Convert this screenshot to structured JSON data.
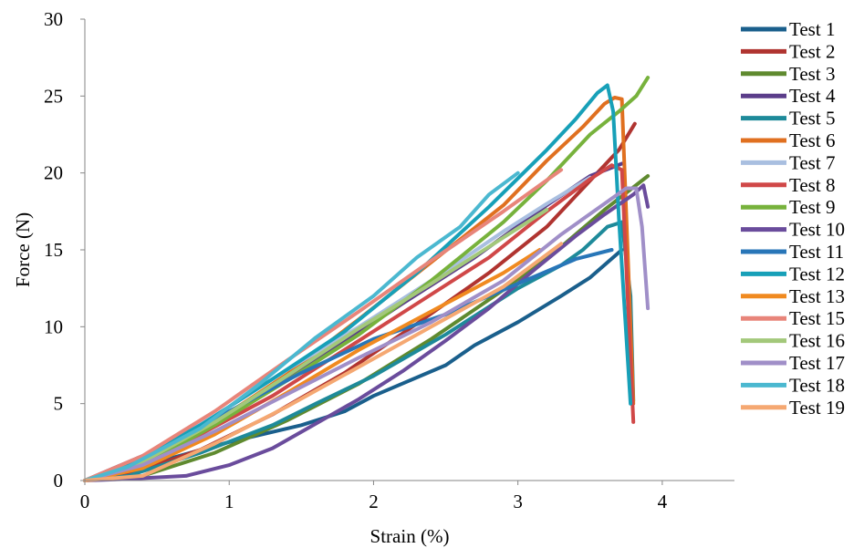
{
  "chart_data": {
    "type": "line",
    "title": "",
    "xlabel": "Strain (%)",
    "ylabel": "Force (N)",
    "xlim": [
      0,
      4.5
    ],
    "ylim": [
      0,
      30
    ],
    "xticks": [
      0,
      1,
      2,
      3,
      4
    ],
    "yticks": [
      0,
      5,
      10,
      15,
      20,
      25,
      30
    ],
    "grid": false,
    "legend_position": "right",
    "series": [
      {
        "name": "Test 1",
        "color": "#1a5f8c",
        "x": [
          0,
          0.2,
          0.5,
          1.0,
          1.5,
          1.8,
          2.0,
          2.2,
          2.5,
          2.7,
          3.0,
          3.3,
          3.5,
          3.72
        ],
        "y": [
          0,
          0.4,
          1.2,
          2.5,
          3.6,
          4.5,
          5.5,
          6.3,
          7.5,
          8.8,
          10.3,
          12.0,
          13.2,
          15.0
        ]
      },
      {
        "name": "Test 2",
        "color": "#b03430",
        "x": [
          0,
          0.3,
          0.8,
          1.3,
          1.8,
          2.3,
          2.8,
          3.2,
          3.5,
          3.7,
          3.81
        ],
        "y": [
          0,
          0.4,
          2.0,
          4.3,
          7.0,
          10.2,
          13.5,
          16.5,
          19.5,
          21.5,
          23.2
        ]
      },
      {
        "name": "Test 3",
        "color": "#5f8a2f",
        "x": [
          0,
          0.4,
          0.9,
          1.4,
          1.9,
          2.4,
          2.9,
          3.3,
          3.6,
          3.9
        ],
        "y": [
          0,
          0.3,
          1.8,
          3.9,
          6.3,
          9.2,
          12.4,
          15.2,
          17.6,
          19.8
        ]
      },
      {
        "name": "Test 4",
        "color": "#5b3d8a",
        "x": [
          0,
          0.2,
          0.7,
          1.2,
          1.7,
          2.2,
          2.7,
          3.2,
          3.5,
          3.72
        ],
        "y": [
          0,
          0.8,
          2.8,
          5.5,
          8.4,
          11.5,
          14.5,
          17.9,
          19.8,
          20.6
        ]
      },
      {
        "name": "Test 5",
        "color": "#1e8a9a",
        "x": [
          0,
          0.3,
          0.8,
          1.3,
          1.6,
          2.0,
          2.5,
          3.0,
          3.3,
          3.45,
          3.62,
          3.72,
          3.78,
          3.8
        ],
        "y": [
          0,
          0.3,
          1.8,
          3.6,
          5.0,
          6.8,
          9.5,
          12.5,
          14.0,
          15.0,
          16.5,
          16.8,
          12.0,
          5.2
        ]
      },
      {
        "name": "Test 6",
        "color": "#e07020",
        "x": [
          0,
          0.4,
          0.9,
          1.4,
          1.9,
          2.4,
          2.9,
          3.2,
          3.45,
          3.6,
          3.67,
          3.72,
          3.76,
          3.8
        ],
        "y": [
          0,
          1.0,
          3.8,
          6.9,
          10.5,
          14.2,
          17.9,
          20.8,
          23.0,
          24.5,
          24.9,
          24.8,
          15.0,
          5.0
        ]
      },
      {
        "name": "Test 7",
        "color": "#a9bfe0",
        "x": [
          0,
          0.4,
          0.9,
          1.4,
          1.9,
          2.4,
          2.9,
          3.2,
          3.5
        ],
        "y": [
          0,
          1.5,
          4.2,
          7.2,
          10.0,
          13.0,
          16.2,
          18.0,
          19.7
        ]
      },
      {
        "name": "Test 8",
        "color": "#d04848",
        "x": [
          0,
          0.3,
          0.8,
          1.3,
          1.8,
          2.3,
          2.8,
          3.2,
          3.5,
          3.65,
          3.72,
          3.76,
          3.8
        ],
        "y": [
          0,
          0.6,
          3.0,
          5.5,
          8.5,
          11.5,
          14.5,
          17.5,
          19.6,
          20.5,
          20.2,
          12.0,
          3.8
        ]
      },
      {
        "name": "Test 9",
        "color": "#77b23c",
        "x": [
          0,
          0.4,
          0.9,
          1.4,
          1.9,
          2.4,
          2.9,
          3.2,
          3.5,
          3.7,
          3.82,
          3.9
        ],
        "y": [
          0,
          1.0,
          3.6,
          6.5,
          9.5,
          13.0,
          16.8,
          19.5,
          22.5,
          24.0,
          25.0,
          26.2
        ]
      },
      {
        "name": "Test 10",
        "color": "#6a4c9c",
        "x": [
          0,
          0.3,
          0.7,
          1.0,
          1.3,
          1.6,
          1.9,
          2.2,
          2.5,
          2.8,
          3.1,
          3.4,
          3.6,
          3.8,
          3.87,
          3.9
        ],
        "y": [
          0,
          0.1,
          0.3,
          1.0,
          2.1,
          3.7,
          5.3,
          7.1,
          9.1,
          11.2,
          13.6,
          15.9,
          17.3,
          18.6,
          19.2,
          17.8
        ]
      },
      {
        "name": "Test 11",
        "color": "#2876b8",
        "x": [
          0,
          0.2,
          0.6,
          1.0,
          1.5,
          2.0,
          2.5,
          3.0,
          3.4,
          3.65
        ],
        "y": [
          0,
          0.7,
          2.4,
          4.5,
          7.0,
          9.2,
          10.8,
          12.8,
          14.4,
          15.0
        ]
      },
      {
        "name": "Test 12",
        "color": "#17a0b8",
        "x": [
          0,
          0.3,
          0.8,
          1.3,
          1.8,
          2.3,
          2.8,
          3.2,
          3.4,
          3.55,
          3.62,
          3.66,
          3.7,
          3.78
        ],
        "y": [
          0,
          1.0,
          3.6,
          6.6,
          9.7,
          13.5,
          17.8,
          21.5,
          23.5,
          25.2,
          25.7,
          24.0,
          17.0,
          5.0
        ]
      },
      {
        "name": "Test 13",
        "color": "#f08a20",
        "x": [
          0,
          0.4,
          0.9,
          1.4,
          1.9,
          2.4,
          2.9,
          3.15
        ],
        "y": [
          0,
          0.8,
          3.0,
          5.7,
          8.5,
          11.0,
          13.5,
          15.0
        ]
      },
      {
        "name": "Test 15",
        "color": "#e8857a",
        "x": [
          0,
          0.4,
          0.9,
          1.4,
          1.9,
          2.4,
          2.9,
          3.3
        ],
        "y": [
          0,
          1.6,
          4.5,
          7.8,
          11.0,
          14.3,
          17.5,
          20.2
        ]
      },
      {
        "name": "Test 16",
        "color": "#a3c87a",
        "x": [
          0,
          0.4,
          0.9,
          1.4,
          1.9,
          2.4,
          2.9,
          3.2
        ],
        "y": [
          0,
          1.2,
          3.8,
          6.8,
          9.9,
          12.8,
          15.8,
          17.6
        ]
      },
      {
        "name": "Test 17",
        "color": "#a08fc8",
        "x": [
          0,
          0.4,
          0.9,
          1.4,
          1.9,
          2.4,
          2.9,
          3.3,
          3.6,
          3.75,
          3.82,
          3.86,
          3.9
        ],
        "y": [
          0,
          1.0,
          3.2,
          5.6,
          8.0,
          10.3,
          13.0,
          16.0,
          18.0,
          19.0,
          19.0,
          16.5,
          11.2
        ]
      },
      {
        "name": "Test 18",
        "color": "#4bb8d0",
        "x": [
          0,
          0.3,
          0.8,
          1.2,
          1.6,
          2.0,
          2.3,
          2.6,
          2.8,
          3.0
        ],
        "y": [
          0,
          0.9,
          3.4,
          6.2,
          9.3,
          12.0,
          14.5,
          16.5,
          18.6,
          20.0
        ]
      },
      {
        "name": "Test 19",
        "color": "#f5a872",
        "x": [
          0,
          0.4,
          0.9,
          1.4,
          1.9,
          2.4,
          2.9,
          3.3
        ],
        "y": [
          0,
          0.3,
          2.4,
          4.8,
          7.4,
          10.0,
          12.6,
          15.4
        ]
      }
    ]
  }
}
